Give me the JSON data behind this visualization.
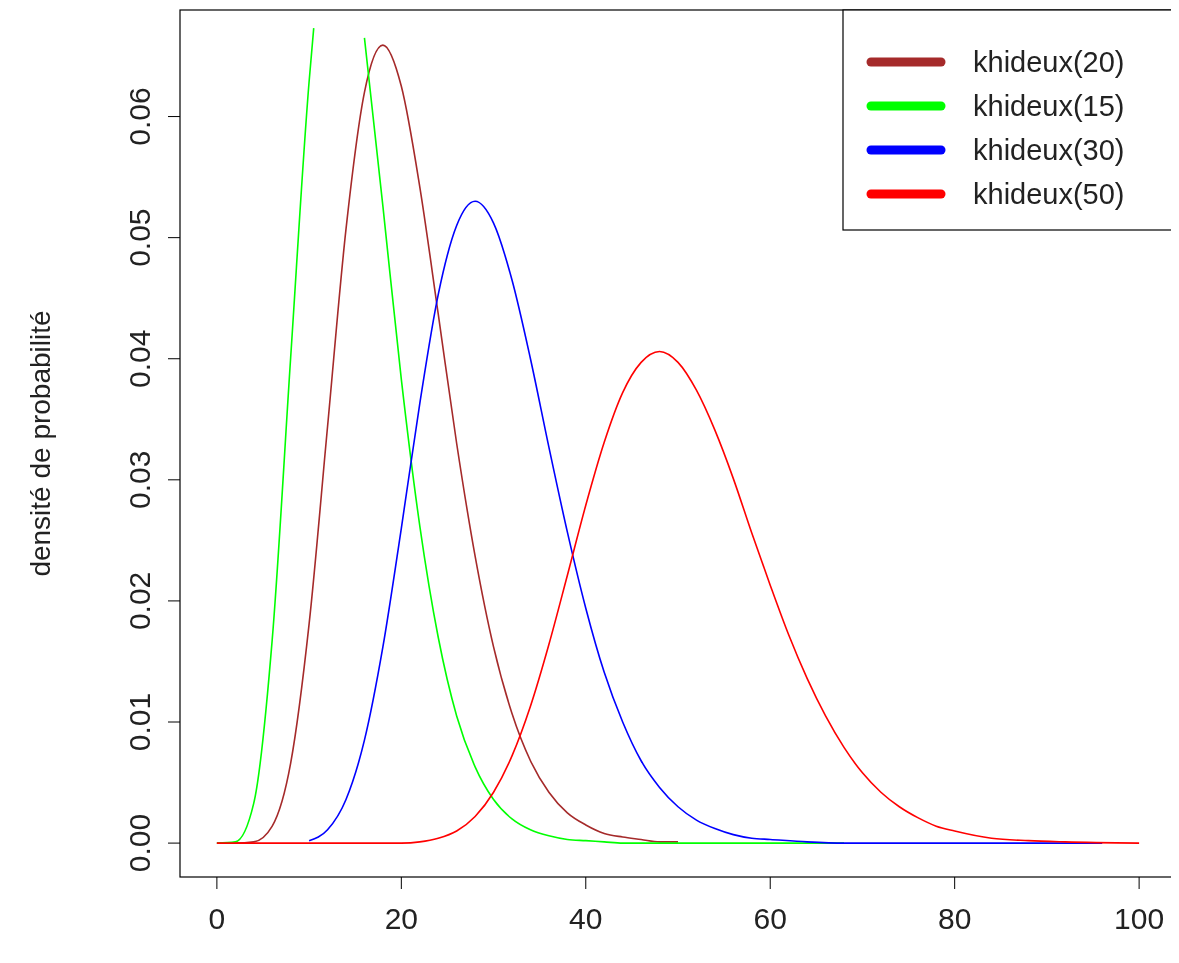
{
  "chart_data": {
    "type": "line",
    "ylabel": "densité de probabilité",
    "xlim": [
      -4,
      104
    ],
    "ylim": [
      -0.0028,
      0.0688
    ],
    "xticks": [
      0,
      20,
      40,
      60,
      80,
      100
    ],
    "yticks": [
      {
        "value": 0,
        "label": "0.00"
      },
      {
        "value": 0.01,
        "label": "0.01"
      },
      {
        "value": 0.02,
        "label": "0.02"
      },
      {
        "value": 0.03,
        "label": "0.03"
      },
      {
        "value": 0.04,
        "label": "0.04"
      },
      {
        "value": 0.05,
        "label": "0.05"
      },
      {
        "value": 0.06,
        "label": "0.06"
      }
    ],
    "grid": false,
    "legend": "top right",
    "marker": "none",
    "line_style": "solid",
    "series": [
      {
        "name": "khideux(20)",
        "color": "#a52a2a",
        "x": [
          0,
          2,
          4,
          6,
          8,
          10,
          12,
          14,
          16,
          18,
          20,
          22,
          24,
          26,
          28,
          30,
          32,
          34,
          36,
          38,
          40,
          42,
          44,
          46,
          48,
          50
        ],
        "values": [
          0,
          0,
          0.0001,
          0.0014,
          0.0066,
          0.0181,
          0.0344,
          0.0507,
          0.062,
          0.0659,
          0.0625,
          0.0542,
          0.0437,
          0.033,
          0.0237,
          0.0162,
          0.0107,
          0.0068,
          0.0042,
          0.0025,
          0.0015,
          0.0008,
          0.0005,
          0.0003,
          0.0001,
          0.0001
        ]
      },
      {
        "name": "khideux(15)",
        "color": "#00ff00",
        "x": [
          0,
          2,
          4,
          6,
          8,
          10,
          10.5,
          12,
          14,
          16,
          18,
          20,
          22,
          24,
          26,
          28,
          30,
          32,
          34,
          36,
          38,
          40,
          42,
          44,
          50,
          56,
          62,
          68
        ],
        "values": [
          0,
          0.0001,
          0.0033,
          0.0168,
          0.0401,
          0.0629,
          0.0673,
          null,
          null,
          0.0665,
          0.0526,
          0.0383,
          0.0262,
          0.017,
          0.0105,
          0.0063,
          0.0036,
          0.002,
          0.0011,
          0.0006,
          0.0003,
          0.0002,
          0.0001,
          0,
          0,
          0,
          0,
          0
        ]
      },
      {
        "name": "khideux(30)",
        "color": "#0000ff",
        "x": [
          10,
          12,
          14,
          16,
          18,
          20,
          22,
          24,
          26,
          28,
          30,
          32,
          34,
          36,
          38,
          40,
          42,
          44,
          46,
          48,
          50,
          52,
          54,
          56,
          58,
          60,
          64,
          68,
          80,
          96
        ],
        "values": [
          0.0002,
          0.0011,
          0.0036,
          0.0085,
          0.0162,
          0.026,
          0.0363,
          0.0453,
          0.051,
          0.053,
          0.0512,
          0.0465,
          0.04,
          0.0327,
          0.0257,
          0.0194,
          0.0141,
          0.01,
          0.0068,
          0.0046,
          0.003,
          0.0019,
          0.0012,
          0.0007,
          0.0004,
          0.0003,
          0.0001,
          0,
          0,
          0
        ]
      },
      {
        "name": "khideux(50)",
        "color": "#ff0000",
        "x": [
          0,
          10,
          20,
          22,
          24,
          26,
          28,
          30,
          32,
          34,
          36,
          38,
          40,
          42,
          44,
          46,
          48,
          50,
          52,
          54,
          56,
          58,
          60,
          62,
          64,
          66,
          68,
          70,
          72,
          74,
          76,
          78,
          80,
          84,
          88,
          92,
          100
        ],
        "values": [
          0,
          0,
          0,
          0.0001,
          0.0004,
          0.001,
          0.0022,
          0.0042,
          0.0072,
          0.0113,
          0.0164,
          0.0221,
          0.0279,
          0.0331,
          0.0372,
          0.0397,
          0.0406,
          0.0397,
          0.0374,
          0.0341,
          0.0301,
          0.0256,
          0.0213,
          0.0172,
          0.0136,
          0.0105,
          0.0079,
          0.0058,
          0.0042,
          0.003,
          0.0021,
          0.0014,
          0.001,
          0.0004,
          0.0002,
          0.0001,
          0
        ]
      }
    ]
  }
}
